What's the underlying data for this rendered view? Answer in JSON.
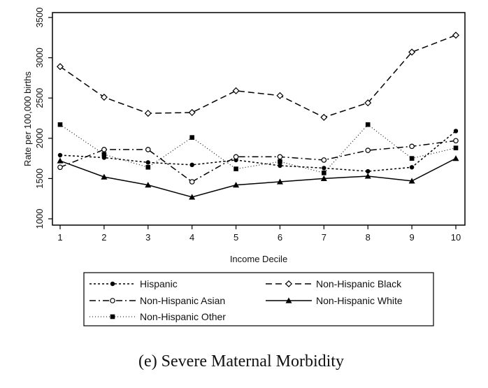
{
  "chart_data": {
    "type": "line",
    "xlabel": "Income Decile",
    "ylabel": "Rate per 100,000 births",
    "caption": "(e) Severe Maternal Morbidity",
    "x": [
      1,
      2,
      3,
      4,
      5,
      6,
      7,
      8,
      9,
      10
    ],
    "xticks": [
      "1",
      "2",
      "3",
      "4",
      "5",
      "6",
      "7",
      "8",
      "9",
      "10"
    ],
    "ylim": [
      1000,
      3500
    ],
    "yticks": [
      "1000",
      "1500",
      "2000",
      "2500",
      "3000",
      "3500"
    ],
    "grid": false,
    "legend_position": "bottom",
    "series": [
      {
        "name": "Hispanic",
        "style": "short-dash",
        "marker": "filled-circle",
        "values": [
          1790,
          1760,
          1700,
          1670,
          1730,
          1660,
          1630,
          1590,
          1640,
          2090
        ]
      },
      {
        "name": "Non-Hispanic Black",
        "style": "long-dash",
        "marker": "hollow-diamond",
        "values": [
          2890,
          2510,
          2310,
          2320,
          2590,
          2530,
          2260,
          2440,
          3070,
          3280
        ]
      },
      {
        "name": "Non-Hispanic Asian",
        "style": "dash-dot",
        "marker": "hollow-circle",
        "values": [
          1640,
          1860,
          1860,
          1460,
          1770,
          1770,
          1730,
          1850,
          1900,
          1970
        ]
      },
      {
        "name": "Non-Hispanic White",
        "style": "solid",
        "marker": "filled-triangle",
        "values": [
          1720,
          1520,
          1420,
          1270,
          1420,
          1460,
          1500,
          1530,
          1470,
          1750
        ]
      },
      {
        "name": "Non-Hispanic Other",
        "style": "dotted",
        "marker": "filled-square",
        "values": [
          2170,
          1800,
          1640,
          2010,
          1620,
          1710,
          1570,
          2170,
          1750,
          1880
        ]
      }
    ]
  }
}
